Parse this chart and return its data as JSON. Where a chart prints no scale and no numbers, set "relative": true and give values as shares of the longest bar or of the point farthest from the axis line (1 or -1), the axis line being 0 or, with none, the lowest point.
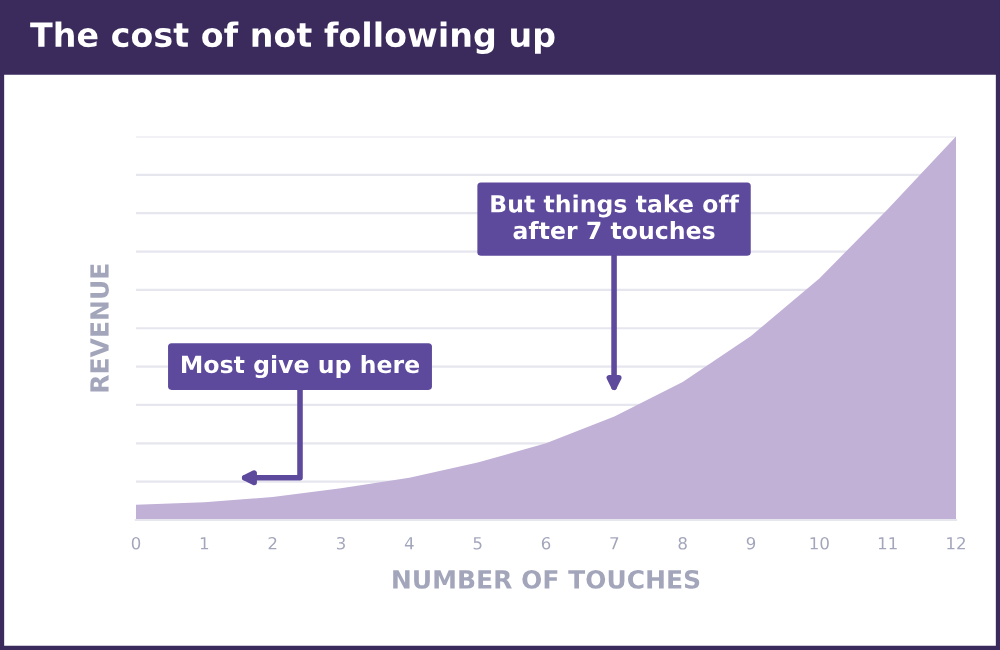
{
  "chart_data": {
    "type": "area",
    "title": "The cost of not following up",
    "xlabel": "NUMBER OF TOUCHES",
    "ylabel": "REVENUE",
    "x": [
      0,
      1,
      2,
      3,
      4,
      5,
      6,
      7,
      8,
      9,
      10,
      11,
      12
    ],
    "series": [
      {
        "color": "#c1b1d7",
        "values": [
          0.04,
          0.046,
          0.06,
          0.083,
          0.11,
          0.15,
          0.2,
          0.27,
          0.36,
          0.48,
          0.63,
          0.81,
          1.0
        ]
      }
    ],
    "relative": true,
    "xlim": [
      0,
      12
    ],
    "xticks": [
      0,
      1,
      2,
      3,
      4,
      5,
      6,
      7,
      8,
      9,
      10,
      11,
      12
    ],
    "grid": "y",
    "annotations": [
      "Most give up here",
      "But things take off\nafter 7 touches"
    ]
  }
}
